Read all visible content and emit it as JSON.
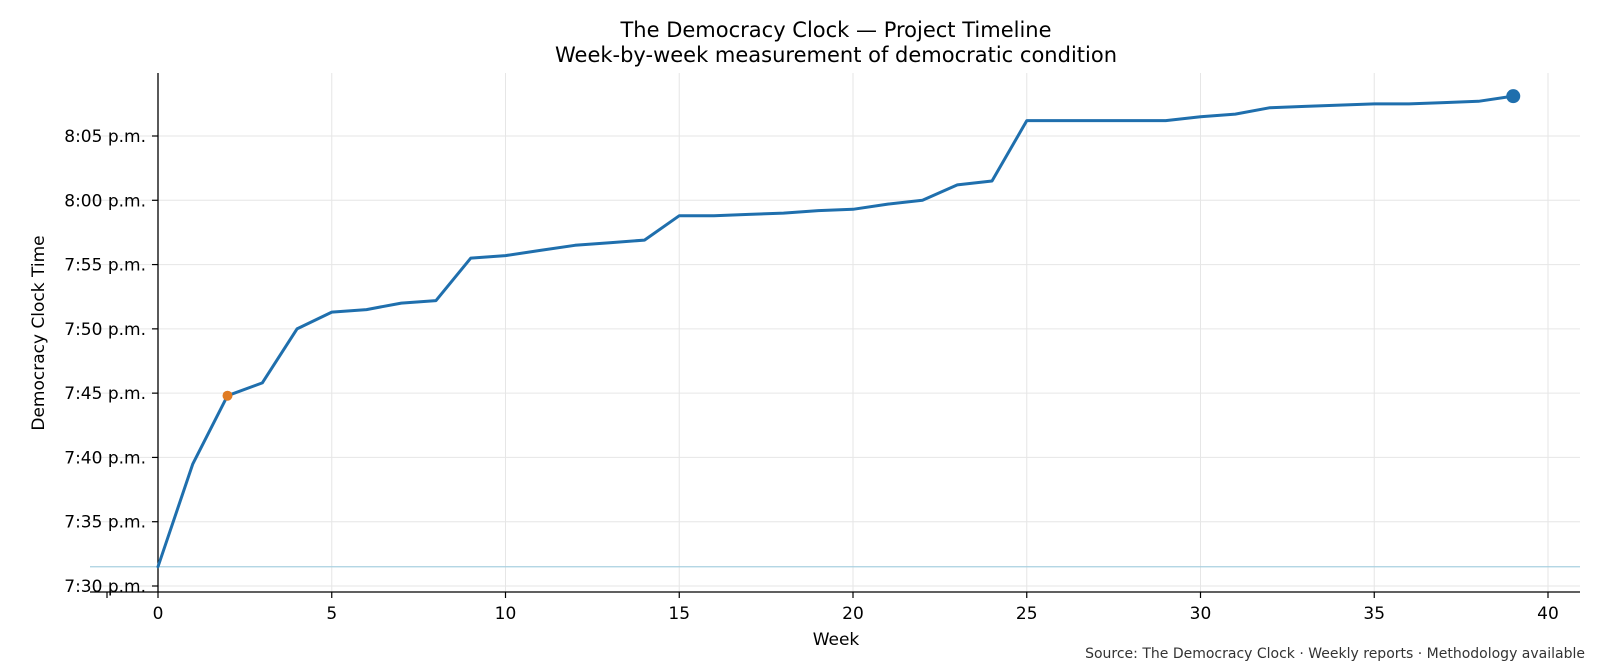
{
  "chart_data": {
    "type": "line",
    "title": "The Democracy Clock — Project Timeline",
    "subtitle": "Week-by-week measurement of democratic condition",
    "xlabel": "Week",
    "ylabel": "Democracy Clock Time",
    "source": "Source: The Democracy Clock · Weekly reports · Methodology available",
    "xlim": [
      -2,
      41
    ],
    "ylim_minutes": [
      449.5,
      490
    ],
    "x_ticks": [
      0,
      5,
      10,
      15,
      20,
      25,
      30,
      35,
      40
    ],
    "y_ticks": [
      {
        "minutes": 450,
        "label": "7:30 p.m."
      },
      {
        "minutes": 455,
        "label": "7:35 p.m."
      },
      {
        "minutes": 460,
        "label": "7:40 p.m."
      },
      {
        "minutes": 465,
        "label": "7:45 p.m."
      },
      {
        "minutes": 470,
        "label": "7:50 p.m."
      },
      {
        "minutes": 475,
        "label": "7:55 p.m."
      },
      {
        "minutes": 480,
        "label": "8:00 p.m."
      },
      {
        "minutes": 485,
        "label": "8:05 p.m."
      }
    ],
    "grid": true,
    "baseline_minutes": 451.5,
    "series": [
      {
        "x": [
          0,
          1,
          2,
          3,
          4,
          5,
          6,
          7,
          8,
          9,
          10,
          11,
          12,
          13,
          14,
          15,
          16,
          17,
          18,
          19,
          20,
          21,
          22,
          23,
          24,
          25,
          26,
          27,
          28,
          29,
          30,
          31,
          32,
          33,
          34,
          35,
          36,
          37,
          38,
          39
        ],
        "y_minutes": [
          451.5,
          459.5,
          464.8,
          465.8,
          470.0,
          471.3,
          471.5,
          472.0,
          472.2,
          475.5,
          475.7,
          476.1,
          476.5,
          476.7,
          476.9,
          478.8,
          478.8,
          478.9,
          479.0,
          479.2,
          479.3,
          479.7,
          480.0,
          481.2,
          481.5,
          486.2,
          486.2,
          486.2,
          486.2,
          486.2,
          486.5,
          486.7,
          487.2,
          487.3,
          487.4,
          487.5,
          487.5,
          487.6,
          487.7,
          488.1
        ]
      }
    ],
    "highlight_points": [
      {
        "x": 2,
        "y_minutes": 464.8,
        "color": "#e07b22"
      },
      {
        "x": 39,
        "y_minutes": 488.1,
        "color": "#1f6fad"
      }
    ],
    "colors": {
      "line": "#1f6fad",
      "baseline": "#a9d0e0",
      "grid": "#e6e6e6",
      "highlight_start": "#e07b22"
    }
  }
}
